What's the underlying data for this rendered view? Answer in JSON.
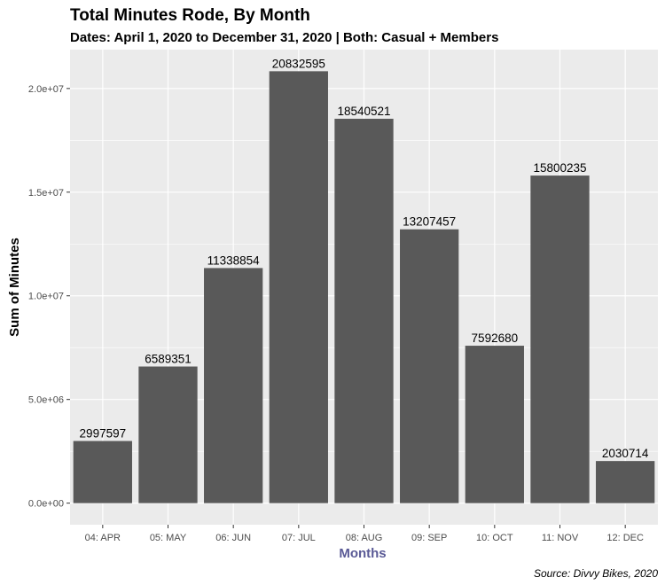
{
  "chart_data": {
    "type": "bar",
    "title": "Total Minutes Rode, By Month",
    "subtitle": "Dates: April 1, 2020 to December 31, 2020 | Both: Casual + Members",
    "xlabel": "Months",
    "ylabel": "Sum of Minutes",
    "caption": "Source: Divvy Bikes, 2020",
    "categories": [
      "04: APR",
      "05: MAY",
      "06: JUN",
      "07: JUL",
      "08: AUG",
      "09: SEP",
      "10: OCT",
      "11: NOV",
      "12: DEC"
    ],
    "values": [
      2997597,
      6589351,
      11338854,
      20832595,
      18540521,
      13207457,
      7592680,
      15800235,
      2030714
    ],
    "data_labels": [
      "2997597",
      "6589351",
      "11338854",
      "20832595",
      "18540521",
      "13207457",
      "7592680",
      "15800235",
      "2030714"
    ],
    "y_ticks": [
      0,
      5000000,
      10000000,
      15000000,
      20000000
    ],
    "y_tick_labels": [
      "0.0e+00",
      "5.0e+06",
      "1.0e+07",
      "1.5e+07",
      "2.0e+07"
    ],
    "ylim": [
      -1041630,
      21874225
    ],
    "grid": true,
    "colors": {
      "bar": "#595959",
      "panel": "#ebebeb",
      "grid": "#ffffff",
      "xlabel": "#5a5a96"
    }
  }
}
